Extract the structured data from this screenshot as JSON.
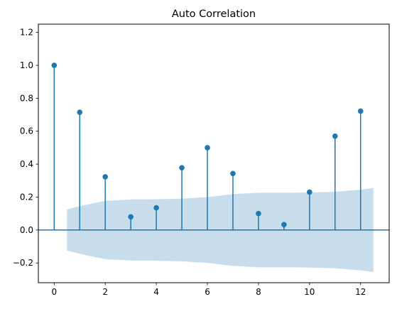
{
  "chart_data": {
    "type": "stem",
    "title": "Auto Correlation",
    "xlabel": "",
    "ylabel": "",
    "xlim": [
      -0.62,
      13.12
    ],
    "ylim": [
      -0.32,
      1.25
    ],
    "xticks": [
      0,
      2,
      4,
      6,
      8,
      10,
      12
    ],
    "xtick_labels": [
      "0",
      "2",
      "4",
      "6",
      "8",
      "10",
      "12"
    ],
    "yticks": [
      -0.2,
      0.0,
      0.2,
      0.4,
      0.6,
      0.8,
      1.0,
      1.2
    ],
    "ytick_labels": [
      "−0.2",
      "0.0",
      "0.2",
      "0.4",
      "0.6",
      "0.8",
      "1.0",
      "1.2"
    ],
    "grid": false,
    "series": [
      {
        "lags": [
          0,
          1,
          2,
          3,
          4,
          5,
          6,
          7,
          8,
          9,
          10,
          11,
          12
        ],
        "values": [
          1.0,
          0.715,
          0.323,
          0.08,
          0.135,
          0.378,
          0.5,
          0.343,
          0.1,
          0.033,
          0.23,
          0.57,
          0.722
        ],
        "color": "#1f77b4"
      }
    ],
    "confidence_band": {
      "x": [
        0.5,
        1,
        2,
        3,
        4,
        5,
        6,
        7,
        8,
        9,
        10,
        11,
        12,
        12.5
      ],
      "upper": [
        0.125,
        0.145,
        0.177,
        0.186,
        0.187,
        0.19,
        0.2,
        0.218,
        0.226,
        0.226,
        0.228,
        0.232,
        0.245,
        0.255
      ],
      "color": "#1f77b4",
      "opacity": 0.25
    }
  }
}
